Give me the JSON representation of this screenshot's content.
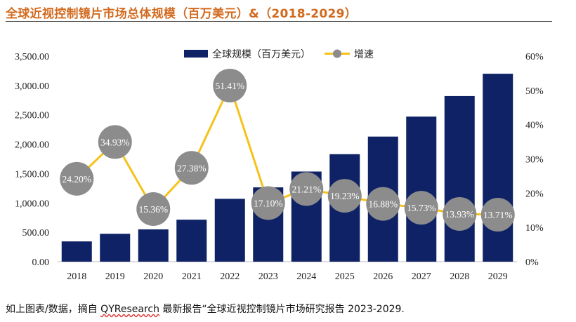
{
  "title": "全球近视控制镜片市场总体规模（百万美元）&（2018-2029）",
  "footnote": {
    "prefix": "如上图表/数据，摘自 ",
    "brand": "QYResearch",
    "suffix": " 最新报告“全球近视控制镜片市场研究报告 2023-2029."
  },
  "colors": {
    "bar": "#0e2265",
    "line": "#f5c21b",
    "marker": "#8c8c8c",
    "marker_text": "#ffffff",
    "title": "#d26a1e"
  },
  "chart_data": {
    "type": "bar",
    "title": "全球近视控制镜片市场总体规模（百万美元）&（2018-2029）",
    "categories": [
      "2018",
      "2019",
      "2020",
      "2021",
      "2022",
      "2023",
      "2024",
      "2025",
      "2026",
      "2027",
      "2028",
      "2029"
    ],
    "series": [
      {
        "name": "全球规模（百万美元）",
        "type": "bar",
        "axis": "left",
        "values": [
          345,
          475,
          550,
          715,
          1070,
          1265,
          1535,
          1830,
          2130,
          2470,
          2820,
          3200
        ]
      },
      {
        "name": "增速",
        "type": "line",
        "axis": "right",
        "values": [
          24.2,
          34.93,
          15.36,
          27.38,
          51.41,
          17.1,
          21.21,
          19.23,
          16.88,
          15.73,
          13.93,
          13.71
        ],
        "labels": [
          "24.20%",
          "34.93%",
          "15.36%",
          "27.38%",
          "51.41%",
          "17.10%",
          "21.21%",
          "19.23%",
          "16.88%",
          "15.73%",
          "13.93%",
          "13.71%"
        ]
      }
    ],
    "y_left": {
      "min": 0,
      "max": 3500,
      "ticks": [
        "0.00",
        "500.00",
        "1,000.00",
        "1,500.00",
        "2,000.00",
        "2,500.00",
        "3,000.00",
        "3,500.00"
      ],
      "tick_values": [
        0,
        500,
        1000,
        1500,
        2000,
        2500,
        3000,
        3500
      ]
    },
    "y_right": {
      "min": 0,
      "max": 60,
      "ticks": [
        "0%",
        "10%",
        "20%",
        "30%",
        "40%",
        "50%",
        "60%"
      ],
      "tick_values": [
        0,
        10,
        20,
        30,
        40,
        50,
        60
      ]
    },
    "legend": {
      "position": "top-center",
      "entries": [
        "全球规模（百万美元）",
        "增速"
      ]
    },
    "grid": false
  }
}
